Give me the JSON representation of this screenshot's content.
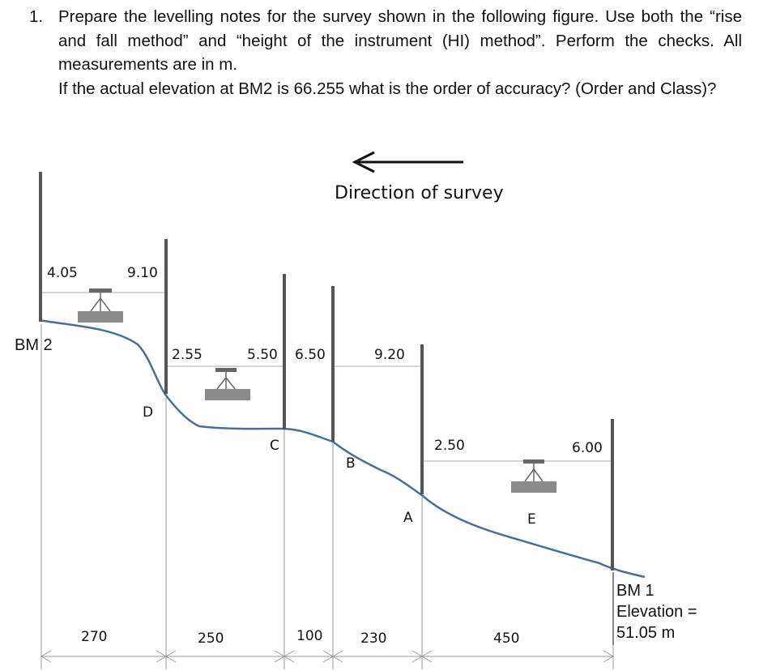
{
  "question": {
    "number": "1.",
    "text1": "Prepare the levelling notes for the survey shown in the following figure. Use both the “rise and fall method” and “height of the instrument (HI) method”. Perform the checks. All measurements are in m.",
    "text2": "If the actual elevation at BM2 is 66.255 what is the order of accuracy? (Order and Class)?"
  },
  "diagram": {
    "direction_label": "Direction of survey",
    "readings": {
      "bm2_bs": "4.05",
      "d_fs": "9.10",
      "d_bs": "2.55",
      "c_fs": "5.50",
      "c_bs": "6.50",
      "b_fs": "9.20",
      "a_bs": "2.50",
      "bm1_fs": "6.00"
    },
    "points": {
      "bm2": "BM 2",
      "d": "D",
      "c": "C",
      "b": "B",
      "a": "A",
      "e": "E"
    },
    "bm1": {
      "name": "BM 1",
      "elevation_label": "Elevation =",
      "elevation_value": "51.05 m"
    },
    "distances": [
      "270",
      "250",
      "100",
      "230",
      "450"
    ],
    "colors": {
      "ground": "#4a6f96",
      "rod": "#555555",
      "dims": "#999999"
    }
  }
}
